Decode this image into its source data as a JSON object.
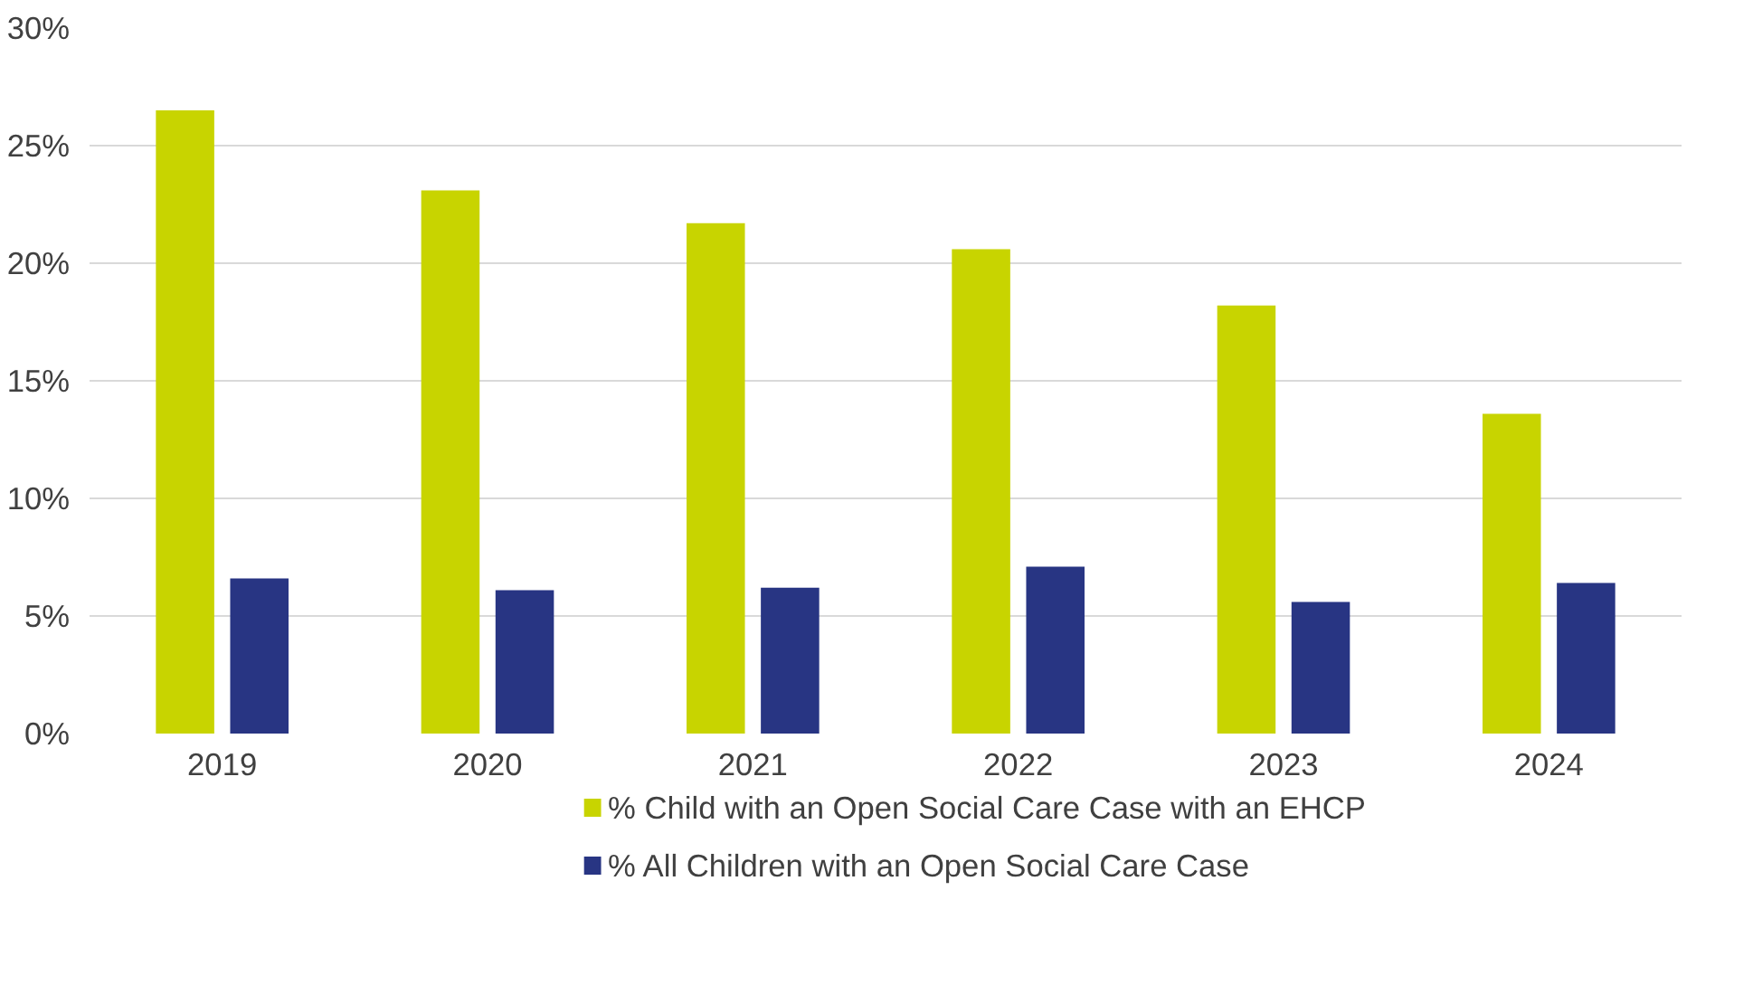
{
  "chart_data": {
    "type": "bar",
    "categories": [
      "2019",
      "2020",
      "2021",
      "2022",
      "2023",
      "2024"
    ],
    "series": [
      {
        "name": "% Child with an Open Social Care Case with an EHCP",
        "color": "#c8d400",
        "values": [
          26.5,
          23.1,
          21.7,
          20.6,
          18.2,
          13.6
        ]
      },
      {
        "name": "% All Children with an Open Social Care Case",
        "color": "#283583",
        "values": [
          6.6,
          6.1,
          6.2,
          7.1,
          5.6,
          6.4
        ]
      }
    ],
    "ylim": [
      0,
      30
    ],
    "yticks": [
      {
        "value": 0,
        "label": "0%"
      },
      {
        "value": 5,
        "label": "5%"
      },
      {
        "value": 10,
        "label": "10%"
      },
      {
        "value": 15,
        "label": "15%"
      },
      {
        "value": 20,
        "label": "20%"
      },
      {
        "value": 25,
        "label": "25%"
      },
      {
        "value": 30,
        "label": "30%"
      }
    ],
    "grid": "y",
    "legend": "bottom"
  }
}
